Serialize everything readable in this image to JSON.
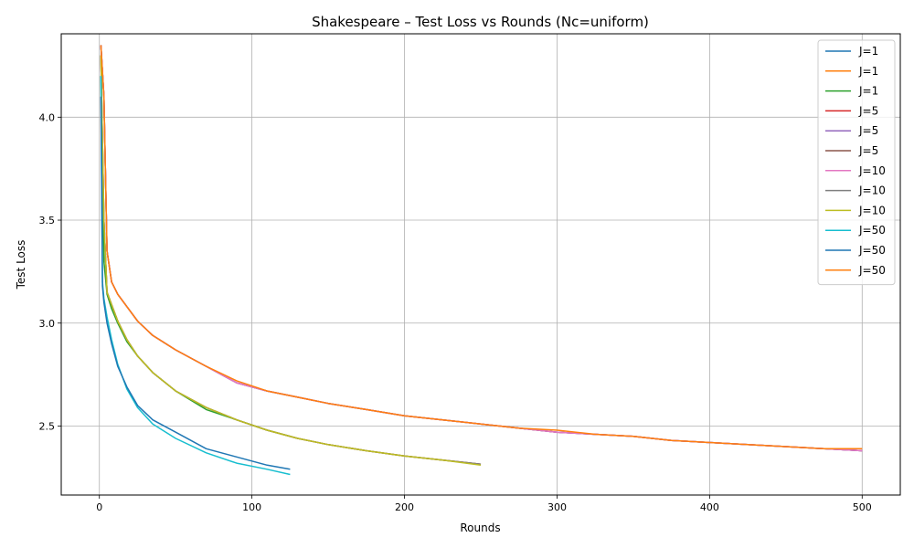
{
  "chart_data": {
    "type": "line",
    "title": "Shakespeare – Test Loss vs Rounds (Nc=uniform)",
    "xlabel": "Rounds",
    "ylabel": "Test Loss",
    "xlim": [
      -25,
      525
    ],
    "ylim": [
      2.165,
      4.405
    ],
    "xticks": [
      0,
      100,
      200,
      300,
      400,
      500
    ],
    "yticks": [
      2.5,
      3.0,
      3.5,
      4.0
    ],
    "xtick_labels": [
      "0",
      "100",
      "200",
      "300",
      "400",
      "500"
    ],
    "ytick_labels": [
      "2.5",
      "3.0",
      "3.5",
      "4.0"
    ],
    "grid": true,
    "legend_position": "top-right",
    "series": [
      {
        "name": "J=1",
        "color": "#1f77b4",
        "x": [
          1,
          3,
          5,
          8,
          12,
          18,
          25,
          35,
          50,
          70,
          90,
          110,
          130,
          150,
          175,
          200,
          225,
          250,
          275,
          300,
          325,
          350,
          375,
          400,
          425,
          450,
          475,
          500
        ],
        "y": [
          4.35,
          4.1,
          3.35,
          3.2,
          3.14,
          3.08,
          3.01,
          2.94,
          2.87,
          2.79,
          2.71,
          2.67,
          2.64,
          2.61,
          2.58,
          2.55,
          2.53,
          2.51,
          2.49,
          2.47,
          2.46,
          2.45,
          2.43,
          2.42,
          2.41,
          2.4,
          2.39,
          2.38
        ]
      },
      {
        "name": "J=1",
        "color": "#ff7f0e",
        "x": [
          1,
          3,
          5,
          8,
          12,
          18,
          25,
          35,
          50,
          70,
          90,
          110,
          130,
          150,
          175,
          200,
          225,
          250
        ],
        "y": [
          4.3,
          3.5,
          3.15,
          3.09,
          3.01,
          2.92,
          2.84,
          2.76,
          2.67,
          2.59,
          2.53,
          2.48,
          2.44,
          2.41,
          2.38,
          2.355,
          2.335,
          2.315
        ]
      },
      {
        "name": "J=1",
        "color": "#2ca02c",
        "x": [
          1,
          3,
          5,
          8,
          12,
          18,
          25,
          35,
          50,
          70,
          90,
          110,
          125
        ],
        "y": [
          4.2,
          3.3,
          3.14,
          3.07,
          3.0,
          2.91,
          2.84,
          2.76,
          2.67,
          2.58,
          2.53,
          2.48,
          2.45
        ]
      },
      {
        "name": "J=5",
        "color": "#d62728",
        "x": [
          1,
          3,
          5,
          8,
          12,
          18,
          25,
          35,
          50,
          70,
          90,
          110,
          130,
          150,
          175,
          200,
          225,
          250,
          275,
          300,
          325,
          350,
          375,
          400,
          425,
          450,
          475,
          500
        ],
        "y": [
          4.35,
          4.1,
          3.35,
          3.2,
          3.14,
          3.08,
          3.01,
          2.94,
          2.87,
          2.79,
          2.71,
          2.67,
          2.64,
          2.61,
          2.58,
          2.55,
          2.53,
          2.51,
          2.49,
          2.47,
          2.46,
          2.45,
          2.43,
          2.42,
          2.41,
          2.4,
          2.39,
          2.38
        ]
      },
      {
        "name": "J=5",
        "color": "#9467bd",
        "x": [
          1,
          3,
          5,
          8,
          12,
          18,
          25,
          35,
          50,
          70,
          90,
          110,
          130,
          150,
          175,
          200,
          225,
          250,
          275,
          300,
          325,
          350,
          375,
          400,
          425,
          450,
          475,
          500
        ],
        "y": [
          4.35,
          4.1,
          3.35,
          3.2,
          3.14,
          3.08,
          3.01,
          2.94,
          2.87,
          2.79,
          2.71,
          2.67,
          2.64,
          2.61,
          2.58,
          2.55,
          2.53,
          2.51,
          2.49,
          2.47,
          2.46,
          2.45,
          2.43,
          2.42,
          2.41,
          2.4,
          2.39,
          2.38
        ]
      },
      {
        "name": "J=5",
        "color": "#8c564b",
        "x": [
          1,
          3,
          5,
          8,
          12,
          18,
          25,
          35,
          50,
          70,
          90,
          110,
          130,
          150,
          175,
          200,
          225,
          250
        ],
        "y": [
          4.3,
          3.5,
          3.15,
          3.09,
          3.01,
          2.92,
          2.84,
          2.76,
          2.67,
          2.59,
          2.53,
          2.48,
          2.44,
          2.41,
          2.38,
          2.355,
          2.335,
          2.315
        ]
      },
      {
        "name": "J=10",
        "color": "#e377c2",
        "x": [
          1,
          3,
          5,
          8,
          12,
          18,
          25,
          35,
          50,
          70,
          90,
          110,
          130,
          150,
          175,
          200,
          225,
          250,
          275,
          300,
          325,
          350,
          375,
          400,
          425,
          450,
          475,
          500
        ],
        "y": [
          4.35,
          4.1,
          3.35,
          3.2,
          3.14,
          3.08,
          3.01,
          2.94,
          2.87,
          2.79,
          2.71,
          2.67,
          2.64,
          2.61,
          2.58,
          2.55,
          2.53,
          2.51,
          2.49,
          2.47,
          2.46,
          2.45,
          2.43,
          2.42,
          2.41,
          2.4,
          2.39,
          2.38
        ]
      },
      {
        "name": "J=10",
        "color": "#7f7f7f",
        "x": [
          1,
          3,
          5,
          8,
          12,
          18,
          25,
          35,
          50,
          70,
          90,
          110,
          130,
          150,
          175,
          200,
          225,
          250
        ],
        "y": [
          4.3,
          3.5,
          3.15,
          3.09,
          3.01,
          2.92,
          2.84,
          2.76,
          2.67,
          2.59,
          2.53,
          2.48,
          2.44,
          2.41,
          2.38,
          2.355,
          2.335,
          2.315
        ]
      },
      {
        "name": "J=10",
        "color": "#bcbd22",
        "x": [
          1,
          3,
          5,
          8,
          12,
          18,
          25,
          35,
          50,
          70,
          90,
          110,
          130,
          150,
          175,
          200,
          225,
          250
        ],
        "y": [
          4.3,
          3.5,
          3.15,
          3.09,
          3.01,
          2.92,
          2.84,
          2.76,
          2.67,
          2.59,
          2.53,
          2.48,
          2.44,
          2.41,
          2.38,
          2.355,
          2.335,
          2.31
        ]
      },
      {
        "name": "J=50",
        "color": "#17becf",
        "x": [
          1,
          2,
          3,
          5,
          8,
          12,
          18,
          25,
          35,
          50,
          70,
          90,
          110,
          125
        ],
        "y": [
          4.2,
          3.2,
          3.12,
          3.03,
          2.92,
          2.8,
          2.68,
          2.59,
          2.51,
          2.44,
          2.37,
          2.32,
          2.29,
          2.265
        ]
      },
      {
        "name": "J=50",
        "color": "#1f77b4",
        "x": [
          1,
          2,
          3,
          5,
          8,
          12,
          18,
          25,
          35,
          50,
          70,
          90,
          110,
          125
        ],
        "y": [
          4.1,
          3.18,
          3.1,
          3.0,
          2.9,
          2.79,
          2.69,
          2.6,
          2.53,
          2.47,
          2.39,
          2.35,
          2.31,
          2.29
        ]
      },
      {
        "name": "J=50",
        "color": "#ff7f0e",
        "x": [
          1,
          3,
          5,
          8,
          12,
          18,
          25,
          35,
          50,
          70,
          90,
          110,
          130,
          150,
          175,
          200,
          225,
          250,
          275,
          300,
          325,
          350,
          375,
          400,
          425,
          450,
          475,
          500
        ],
        "y": [
          4.35,
          4.1,
          3.35,
          3.2,
          3.14,
          3.08,
          3.01,
          2.94,
          2.87,
          2.79,
          2.72,
          2.67,
          2.64,
          2.61,
          2.58,
          2.55,
          2.53,
          2.51,
          2.49,
          2.48,
          2.46,
          2.45,
          2.43,
          2.42,
          2.41,
          2.4,
          2.39,
          2.39
        ]
      }
    ]
  }
}
